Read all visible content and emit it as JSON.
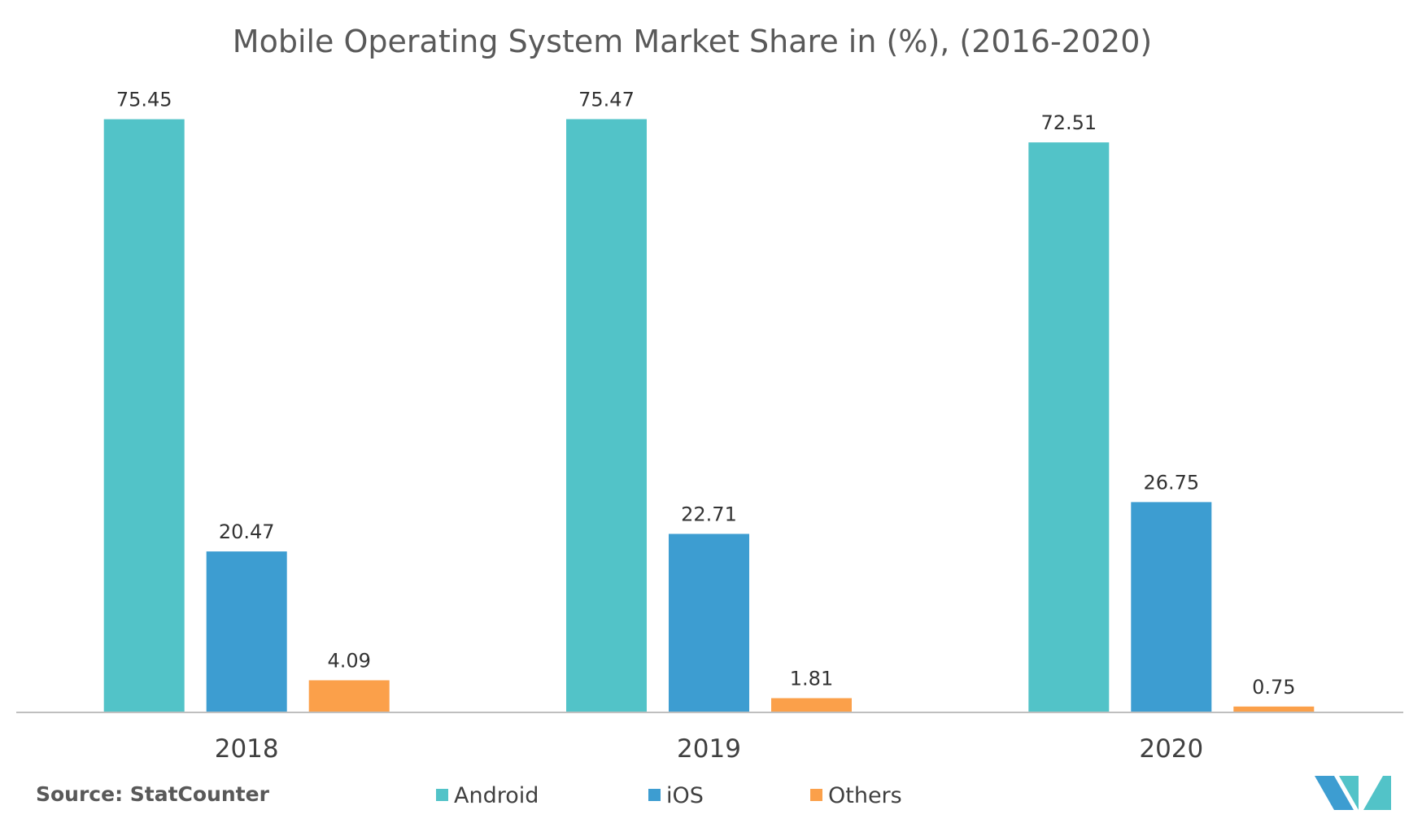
{
  "chart_data": {
    "type": "bar",
    "title": "Mobile Operating System Market Share in (%), (2016-2020)",
    "categories": [
      "2018",
      "2019",
      "2020"
    ],
    "series": [
      {
        "name": "Android",
        "values": [
          75.45,
          75.47,
          72.51
        ],
        "color": "#52C3C8"
      },
      {
        "name": "iOS",
        "values": [
          20.47,
          22.71,
          26.75
        ],
        "color": "#3D9DD1"
      },
      {
        "name": "Others",
        "values": [
          4.09,
          1.81,
          0.75
        ],
        "color": "#FBA04A"
      }
    ],
    "value_labels": [
      [
        "75.45",
        "75.47",
        "72.51"
      ],
      [
        "20.47",
        "22.71",
        "26.75"
      ],
      [
        "4.09",
        "1.81",
        "0.75"
      ]
    ],
    "ylim": [
      0,
      84
    ],
    "grid": false,
    "legend_position": "bottom"
  },
  "source": "Source: StatCounter",
  "logo": {
    "name": "mordor-intelligence-logo",
    "colors": [
      "#3D9DD1",
      "#52C3C8"
    ]
  },
  "axis_color": "#BFBFBF"
}
